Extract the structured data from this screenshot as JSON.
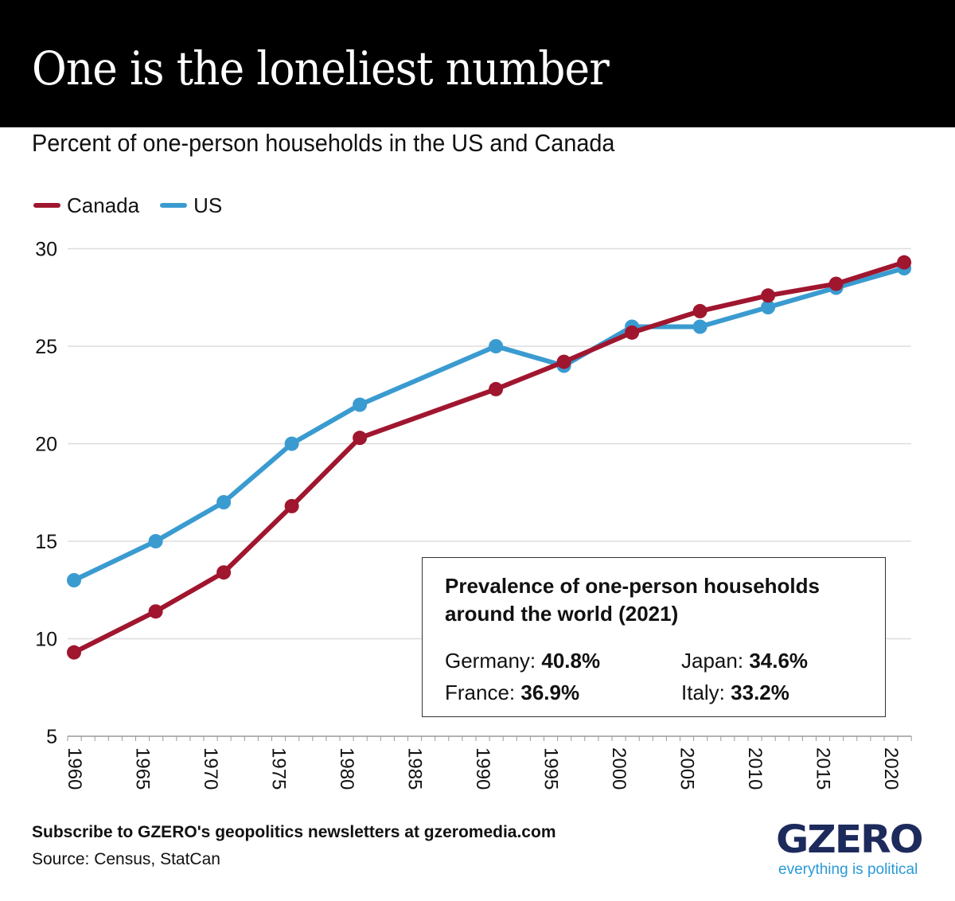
{
  "header": {
    "title": "One is the loneliest number"
  },
  "subtitle": "Percent of one-person households in the US and Canada",
  "colors": {
    "canada": "#a0162f",
    "us": "#3a9bd0",
    "grid": "#dddddd",
    "axis": "#999999",
    "logo": "#1d2a5c",
    "tagline": "#2a9ad6"
  },
  "chart_data": {
    "type": "line",
    "title": "Percent of one-person households in the US and Canada",
    "xlabel": "",
    "ylabel": "",
    "xlim": [
      1960,
      2021
    ],
    "ylim": [
      5,
      30
    ],
    "y_ticks": [
      5,
      10,
      15,
      20,
      25,
      30
    ],
    "x_ticks": [
      1960,
      1965,
      1970,
      1975,
      1980,
      1985,
      1990,
      1995,
      2000,
      2005,
      2010,
      2015,
      2020
    ],
    "grid": true,
    "legend": "top-left",
    "series": [
      {
        "name": "Canada",
        "color": "#a0162f",
        "x": [
          1960,
          1966,
          1971,
          1976,
          1981,
          1991,
          1996,
          2001,
          2006,
          2011,
          2016,
          2021
        ],
        "values": [
          9.3,
          11.4,
          13.4,
          16.8,
          20.3,
          22.8,
          24.2,
          25.7,
          26.8,
          27.6,
          28.2,
          29.3
        ]
      },
      {
        "name": "US",
        "color": "#3a9bd0",
        "x": [
          1960,
          1966,
          1971,
          1976,
          1981,
          1991,
          1996,
          2001,
          2006,
          2011,
          2016,
          2021
        ],
        "values": [
          13.0,
          15.0,
          17.0,
          20.0,
          22.0,
          25.0,
          24.0,
          26.0,
          26.0,
          27.0,
          28.0,
          29.0
        ]
      }
    ]
  },
  "legend": [
    {
      "label": "Canada"
    },
    {
      "label": "US"
    }
  ],
  "info_box": {
    "title": "Prevalence of one-person households around the world (2021)",
    "items": [
      {
        "country": "Germany:",
        "value": "40.8%"
      },
      {
        "country": "Japan:",
        "value": "34.6%"
      },
      {
        "country": "France:",
        "value": "36.9%"
      },
      {
        "country": "Italy:",
        "value": "33.2%"
      }
    ]
  },
  "footer": {
    "cta": "Subscribe to GZERO's geopolitics newsletters at gzeromedia.com",
    "source": "Source: Census, StatCan"
  },
  "logo": {
    "name": "GZERO",
    "tagline": "everything is political"
  }
}
